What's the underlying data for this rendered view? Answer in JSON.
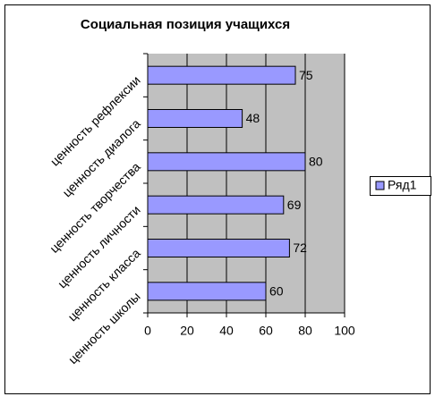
{
  "chart_data": {
    "type": "bar",
    "orientation": "horizontal",
    "title": "Социальная позиция учащихся",
    "categories": [
      "ценность рефлексии",
      "ценность диалога",
      "ценность творчества",
      "ценность личности",
      "ценность класса",
      "ценность школы"
    ],
    "series": [
      {
        "name": "Ряд1",
        "color": "#9999ff",
        "values": [
          75,
          48,
          80,
          69,
          72,
          60
        ]
      }
    ],
    "xlim": [
      0,
      100
    ],
    "xticks": [
      0,
      20,
      40,
      60,
      80,
      100
    ],
    "grid": true,
    "legend": "right"
  }
}
